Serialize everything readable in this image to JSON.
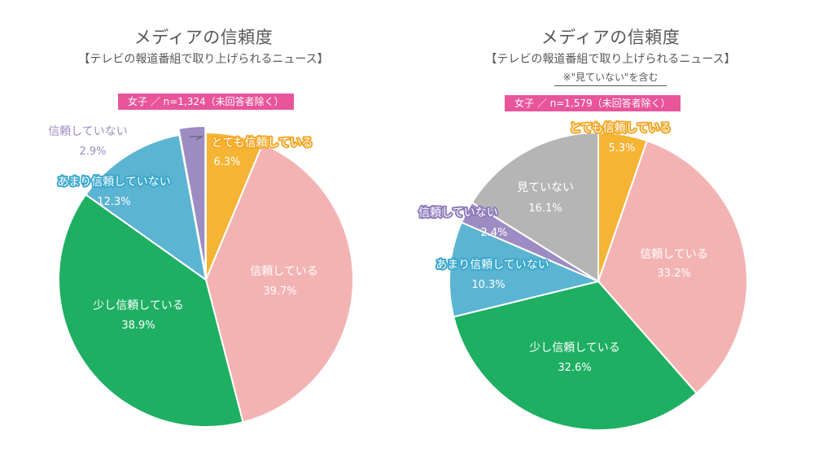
{
  "chart_data": [
    {
      "type": "pie",
      "title": "メディアの信頼度",
      "subtitle": "【テレビの報道番組で取り上げられるニュース】",
      "note": "",
      "badge": "女子 ／ n=1,324（未回答者除く）",
      "slices": [
        {
          "label": "とても信頼している",
          "value": 6.3,
          "value_label": "6.3%",
          "color": "#f6b434",
          "label_color": "#ffffff",
          "outline": "#f5a623",
          "value_color": "#ffffff"
        },
        {
          "label": "信頼している",
          "value": 39.7,
          "value_label": "39.7%",
          "color": "#f4b3b3",
          "label_color": "#ffffff",
          "outline": "",
          "value_color": "#ffffff"
        },
        {
          "label": "少し信頼している",
          "value": 38.9,
          "value_label": "38.9%",
          "color": "#1eaf62",
          "label_color": "#ffffff",
          "outline": "",
          "value_color": "#ffffff"
        },
        {
          "label": "あまり信頼していない",
          "value": 12.3,
          "value_label": "12.3%",
          "color": "#5bb4d2",
          "label_color": "#ffffff",
          "outline": "#3aa7cc",
          "value_color": "#ffffff"
        },
        {
          "label": "信頼していない",
          "value": 2.9,
          "value_label": "2.9%",
          "color": "#9d8cc4",
          "label_color": "#9d8cc4",
          "outline": "",
          "value_color": "#9d8cc4"
        }
      ]
    },
    {
      "type": "pie",
      "title": "メディアの信頼度",
      "subtitle": "【テレビの報道番組で取り上げられるニュース】",
      "note": "※\"見ていない\"を含む",
      "badge": "女子 ／ n=1,579（未回答者除く）",
      "slices": [
        {
          "label": "とても信頼している",
          "value": 5.3,
          "value_label": "5.3%",
          "color": "#f6b434",
          "label_color": "#ffffff",
          "outline": "#f5a623",
          "value_color": "#ffffff"
        },
        {
          "label": "信頼している",
          "value": 33.2,
          "value_label": "33.2%",
          "color": "#f4b3b3",
          "label_color": "#ffffff",
          "outline": "",
          "value_color": "#ffffff"
        },
        {
          "label": "少し信頼している",
          "value": 32.6,
          "value_label": "32.6%",
          "color": "#1eaf62",
          "label_color": "#ffffff",
          "outline": "",
          "value_color": "#ffffff"
        },
        {
          "label": "あまり信頼していない",
          "value": 10.3,
          "value_label": "10.3%",
          "color": "#5bb4d2",
          "label_color": "#ffffff",
          "outline": "#3aa7cc",
          "value_color": "#ffffff"
        },
        {
          "label": "信頼していない",
          "value": 2.4,
          "value_label": "2.4%",
          "color": "#9d8cc4",
          "label_color": "#ffffff",
          "outline": "#8e7bbd",
          "value_color": "#ffffff"
        },
        {
          "label": "見ていない",
          "value": 16.1,
          "value_label": "16.1%",
          "color": "#b5b5b5",
          "label_color": "#ffffff",
          "outline": "",
          "value_color": "#ffffff"
        }
      ]
    }
  ]
}
